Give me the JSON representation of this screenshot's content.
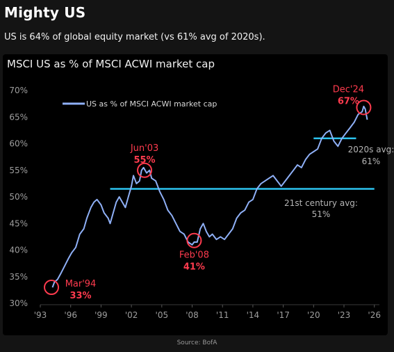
{
  "header": {
    "title": "Mighty US",
    "subtitle": "US is 64% of global equity market (vs 61% avg of 2020s)."
  },
  "footer": {
    "source": "Source: BofA"
  },
  "colors": {
    "series": "#8fb0f7",
    "reference_line": "#2cc4f0",
    "annotation": "#ff3b4e",
    "axis_text": "#9e9e9e",
    "ref_text": "#b5b5b5"
  },
  "chart_data": {
    "type": "line",
    "title": "MSCI US as % of MSCI ACWI market cap",
    "xlabel": "",
    "ylabel": "",
    "xlim": [
      1993,
      2026.5
    ],
    "ylim": [
      30,
      70
    ],
    "x_ticks": [
      1993,
      1996,
      1999,
      2002,
      2005,
      2008,
      2011,
      2014,
      2017,
      2020,
      2023,
      2026
    ],
    "x_tick_labels": [
      "'93",
      "'96",
      "'99",
      "'02",
      "'05",
      "'08",
      "'11",
      "'14",
      "'17",
      "'20",
      "'23",
      "'26"
    ],
    "y_ticks": [
      30,
      35,
      40,
      45,
      50,
      55,
      60,
      65,
      70
    ],
    "y_tick_labels": [
      "30%",
      "35%",
      "40%",
      "45%",
      "50%",
      "55%",
      "60%",
      "65%",
      "70%"
    ],
    "grid": false,
    "legend": {
      "position": "top-left",
      "entries": [
        "US as % of MSCI ACWI market cap"
      ]
    },
    "series": [
      {
        "name": "US as % of MSCI ACWI market cap",
        "x": [
          1994.2,
          1994.4,
          1994.7,
          1995.0,
          1995.4,
          1995.8,
          1996.1,
          1996.5,
          1996.9,
          1997.3,
          1997.6,
          1998.0,
          1998.3,
          1998.6,
          1999.0,
          1999.3,
          1999.7,
          1999.9,
          2000.2,
          2000.5,
          2000.8,
          2001.1,
          2001.4,
          2001.7,
          2002.0,
          2002.2,
          2002.5,
          2002.8,
          2003.0,
          2003.2,
          2003.5,
          2003.8,
          2004.0,
          2004.4,
          2004.8,
          2005.2,
          2005.6,
          2006.0,
          2006.4,
          2006.8,
          2007.2,
          2007.6,
          2008.0,
          2008.2,
          2008.5,
          2008.8,
          2009.1,
          2009.4,
          2009.7,
          2010.0,
          2010.4,
          2010.8,
          2011.2,
          2011.6,
          2012.0,
          2012.4,
          2012.8,
          2013.2,
          2013.6,
          2014.0,
          2014.4,
          2014.8,
          2015.2,
          2015.6,
          2016.0,
          2016.4,
          2016.8,
          2017.2,
          2017.6,
          2018.0,
          2018.4,
          2018.8,
          2019.2,
          2019.6,
          2020.0,
          2020.4,
          2020.8,
          2021.2,
          2021.6,
          2022.0,
          2022.4,
          2022.8,
          2023.2,
          2023.6,
          2024.0,
          2024.4,
          2024.8,
          2024.95,
          2025.1,
          2025.3
        ],
        "values": [
          33,
          34,
          34.5,
          35.5,
          37,
          38.5,
          39.5,
          40.5,
          43,
          44,
          46,
          48,
          49,
          49.5,
          48.5,
          47,
          46,
          45,
          47,
          49,
          50,
          49,
          48,
          50,
          52,
          54,
          52.5,
          53,
          55,
          55.5,
          54.5,
          55,
          53.5,
          53,
          51,
          49.5,
          47.5,
          46.5,
          45,
          43.5,
          43,
          41.5,
          41,
          41.5,
          41.5,
          44,
          45,
          43.5,
          42.5,
          43,
          42,
          42.5,
          42,
          43,
          44,
          46,
          47,
          47.5,
          49,
          49.5,
          51.5,
          52.5,
          53,
          53.5,
          54,
          53,
          52,
          53,
          54,
          55,
          56,
          55.5,
          57,
          58,
          58.5,
          59,
          61,
          62,
          62.5,
          60.5,
          59.5,
          61,
          62,
          63,
          64,
          65.5,
          66,
          67,
          66.5,
          64.5
        ]
      }
    ],
    "reference_lines": [
      {
        "label": "21st century avg:",
        "value_label": "51%",
        "value": 51.5,
        "x_start": 1999.9,
        "x_end": 2026.0
      },
      {
        "label": "2020s avg:",
        "value_label": "61%",
        "value": 61,
        "x_start": 2020.0,
        "x_end": 2024.2
      }
    ],
    "annotations": [
      {
        "date": "Mar'94",
        "value_label": "33%",
        "x": 1994.1,
        "y": 33
      },
      {
        "date": "Jun'03",
        "value_label": "55%",
        "x": 2003.3,
        "y": 55
      },
      {
        "date": "Feb'08",
        "value_label": "41%",
        "x": 2008.2,
        "y": 41.8
      },
      {
        "date": "Dec'24",
        "value_label": "67%",
        "x": 2024.95,
        "y": 66.8
      }
    ]
  }
}
